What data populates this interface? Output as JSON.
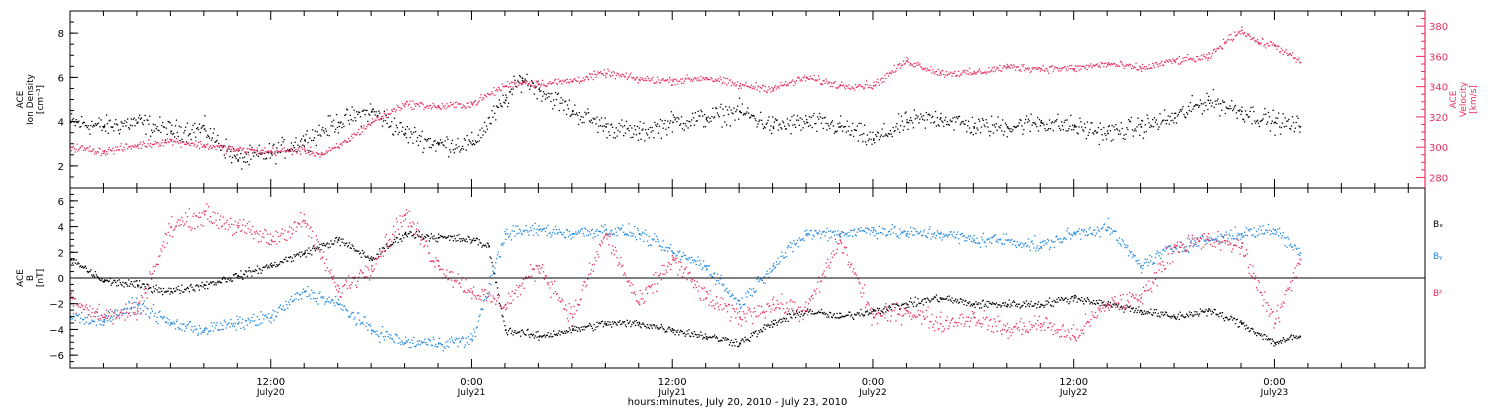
{
  "colors": {
    "black": "#000000",
    "pink": "#e8305e",
    "blue": "#1f86e0"
  },
  "time_axis": {
    "label": "hours:minutes, July 20, 2010 - July 23, 2010",
    "start_hours": 0,
    "end_hours": 81,
    "major_ticks": [
      {
        "hours": 12,
        "time": "12:00",
        "date": "July20"
      },
      {
        "hours": 24,
        "time": "0:00",
        "date": "July21"
      },
      {
        "hours": 36,
        "time": "12:00",
        "date": "July21"
      },
      {
        "hours": 48,
        "time": "0:00",
        "date": "July22"
      },
      {
        "hours": 60,
        "time": "12:00",
        "date": "July22"
      },
      {
        "hours": 72,
        "time": "0:00",
        "date": "July23"
      }
    ],
    "minor_tick_step_hours": 2
  },
  "panels": [
    {
      "id": "density-velocity",
      "ylabel_lines": [
        "ACE",
        "Ion Density",
        "[cm⁻³]"
      ],
      "ylim": [
        1,
        9
      ],
      "ticks": [
        2,
        4,
        6,
        8
      ],
      "right_axis": {
        "label_lines": [
          "ACE",
          "Velocity",
          "[km/s]"
        ],
        "ylim": [
          275,
          390
        ],
        "ticks": [
          280,
          300,
          320,
          340,
          360,
          380
        ]
      }
    },
    {
      "id": "magnetic-field",
      "ylabel_lines": [
        "ACE",
        "B",
        "[nT]"
      ],
      "ylim": [
        -7,
        7
      ],
      "ticks": [
        -6,
        -4,
        -2,
        0,
        2,
        4,
        6
      ],
      "zero_line": true,
      "legend": [
        {
          "name": "Bₓ",
          "color": "#000000"
        },
        {
          "name": "Bᵧ",
          "color": "#1f86e0"
        },
        {
          "name": "Bᶻ",
          "color": "#e8305e"
        }
      ]
    }
  ],
  "chart_data": [
    {
      "type": "scatter",
      "panel": "density-velocity",
      "x_unit": "hours since July 20, 2010 00:00",
      "series": [
        {
          "name": "Ion Density",
          "axis": "left",
          "color": "#000000",
          "x": [
            0,
            2,
            4,
            6,
            8,
            10,
            12,
            14,
            16,
            18,
            20,
            22,
            24,
            26,
            27,
            28,
            30,
            32,
            34,
            36,
            38,
            40,
            42,
            44,
            46,
            48,
            50,
            52,
            54,
            56,
            58,
            60,
            62,
            64,
            66,
            68,
            70,
            72,
            73.5
          ],
          "y": [
            4.0,
            3.8,
            4.0,
            3.6,
            3.7,
            2.3,
            2.6,
            3.2,
            4.0,
            4.5,
            3.5,
            3.0,
            3.0,
            5.0,
            6.0,
            5.5,
            4.5,
            3.8,
            3.5,
            4.0,
            4.2,
            4.5,
            3.8,
            4.0,
            3.8,
            3.2,
            4.0,
            4.2,
            3.8,
            3.8,
            4.0,
            3.8,
            3.5,
            3.8,
            4.2,
            5.0,
            4.5,
            4.0,
            3.8
          ]
        },
        {
          "name": "Velocity",
          "axis": "right",
          "color": "#e8305e",
          "x": [
            0,
            2,
            4,
            6,
            8,
            10,
            12,
            14,
            15,
            16,
            18,
            20,
            22,
            24,
            26,
            27,
            28,
            30,
            32,
            34,
            36,
            38,
            40,
            42,
            44,
            46,
            48,
            50,
            52,
            54,
            56,
            58,
            60,
            62,
            64,
            66,
            68,
            69,
            70,
            71,
            72,
            73.5
          ],
          "y": [
            302,
            299,
            303,
            306,
            303,
            300,
            299,
            300,
            297,
            302,
            318,
            330,
            328,
            330,
            342,
            344,
            343,
            345,
            350,
            346,
            345,
            347,
            342,
            340,
            347,
            342,
            342,
            358,
            350,
            350,
            354,
            353,
            353,
            356,
            353,
            358,
            360,
            370,
            378,
            370,
            368,
            357
          ]
        }
      ]
    },
    {
      "type": "scatter",
      "panel": "magnetic-field",
      "x_unit": "hours since July 20, 2010 00:00",
      "series": [
        {
          "name": "Bx",
          "color": "#000000",
          "x": [
            0,
            2,
            4,
            6,
            8,
            10,
            12,
            14,
            16,
            18,
            20,
            22,
            24,
            25,
            26,
            28,
            30,
            32,
            34,
            36,
            38,
            40,
            42,
            44,
            46,
            48,
            50,
            52,
            54,
            56,
            58,
            60,
            62,
            64,
            66,
            68,
            70,
            72,
            73.5
          ],
          "y": [
            1.5,
            -0.2,
            -0.5,
            -1.0,
            -0.5,
            0.2,
            1.0,
            2.0,
            3.0,
            1.5,
            3.5,
            3.2,
            3.0,
            2.5,
            -4.0,
            -4.5,
            -4.0,
            -3.5,
            -3.5,
            -4.0,
            -4.5,
            -5.0,
            -3.5,
            -2.5,
            -3.0,
            -2.5,
            -2.0,
            -1.5,
            -2.0,
            -2.0,
            -2.0,
            -1.5,
            -2.0,
            -2.5,
            -3.0,
            -2.5,
            -3.5,
            -5.0,
            -4.5
          ]
        },
        {
          "name": "By",
          "color": "#1f86e0",
          "x": [
            0,
            2,
            4,
            6,
            8,
            10,
            12,
            14,
            16,
            18,
            20,
            22,
            24,
            26,
            28,
            30,
            32,
            34,
            36,
            38,
            40,
            42,
            44,
            46,
            48,
            50,
            52,
            54,
            56,
            58,
            60,
            62,
            64,
            66,
            68,
            70,
            72,
            73.5
          ],
          "y": [
            -3.0,
            -3.2,
            -2.0,
            -3.5,
            -4.0,
            -3.5,
            -3.0,
            -1.0,
            -2.0,
            -4.0,
            -5.0,
            -5.0,
            -4.8,
            3.5,
            3.8,
            3.5,
            3.8,
            3.5,
            2.0,
            1.0,
            -2.0,
            1.0,
            3.5,
            3.5,
            3.8,
            3.5,
            3.5,
            3.0,
            3.0,
            2.5,
            3.5,
            4.0,
            1.0,
            2.5,
            3.0,
            3.5,
            3.8,
            2.0
          ]
        },
        {
          "name": "Bz",
          "color": "#e8305e",
          "x": [
            0,
            2,
            4,
            6,
            8,
            10,
            12,
            14,
            16,
            18,
            20,
            22,
            24,
            26,
            28,
            30,
            32,
            34,
            36,
            38,
            40,
            42,
            44,
            46,
            48,
            50,
            52,
            54,
            56,
            58,
            60,
            62,
            64,
            66,
            68,
            70,
            72,
            73.5
          ],
          "y": [
            -1.5,
            -3.0,
            -2.5,
            4.0,
            5.0,
            4.0,
            3.0,
            4.5,
            -1.0,
            1.0,
            5.0,
            1.0,
            -1.0,
            -2.0,
            1.0,
            -3.0,
            3.5,
            -2.0,
            1.5,
            -1.5,
            -3.0,
            -2.0,
            -2.5,
            3.0,
            -3.0,
            -2.5,
            -3.5,
            -3.0,
            -4.0,
            -3.5,
            -4.5,
            -2.0,
            -1.5,
            2.5,
            3.0,
            2.5,
            -3.5,
            1.5
          ]
        }
      ]
    }
  ]
}
